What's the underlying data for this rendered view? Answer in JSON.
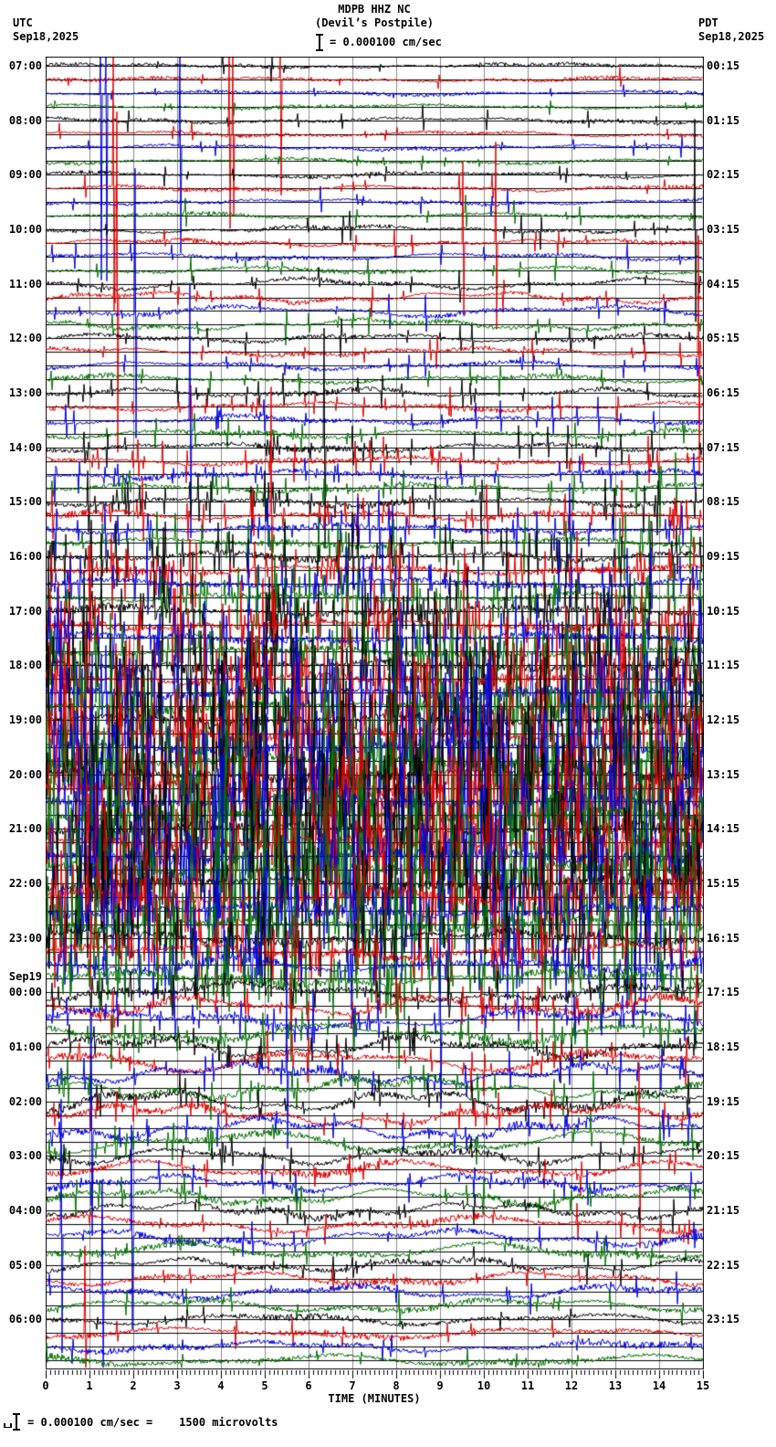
{
  "header": {
    "station_line": "MDPB HHZ NC",
    "location_line": "(Devil’s Postpile)",
    "left_timezone": "UTC",
    "left_date": "Sep18,2025",
    "right_timezone": "PDT",
    "right_date": "Sep18,2025",
    "scale_text": "= 0.000100 cm/sec"
  },
  "footer": {
    "scale_text": "= 0.000100 cm/sec =    1500 microvolts"
  },
  "xaxis": {
    "label": "TIME (MINUTES)",
    "tick_labels": [
      "0",
      "1",
      "2",
      "3",
      "4",
      "5",
      "6",
      "7",
      "8",
      "9",
      "10",
      "11",
      "12",
      "13",
      "14",
      "15"
    ]
  },
  "chart_data": {
    "type": "seismogram-helicorder",
    "title": "MDPB HHZ NC (Devil’s Postpile)",
    "minutes_per_line": 15,
    "lines_per_hour": 4,
    "row_count": 96,
    "x_range_minutes": [
      0,
      15
    ],
    "x_major_tick_minutes": 1,
    "x_minor_tick_minutes": 0.1,
    "amplitude_scale_cm_per_sec": "0.000100",
    "amplitude_scale_microvolts": "1500",
    "trace_color_cycle": [
      "black",
      "red",
      "blue",
      "green"
    ],
    "colors": {
      "black": "#000000",
      "red": "#dd0000",
      "blue": "#0000dd",
      "green": "#007000",
      "grid": "#8c8c8c",
      "border": "#000000",
      "background": "#ffffff"
    },
    "hours": [
      {
        "utc": "07:00",
        "pdt": "00:15",
        "noise": 1.6,
        "wander": 1.5,
        "spikes": 6,
        "spike_amp": 18
      },
      {
        "utc": "08:00",
        "pdt": "01:15",
        "noise": 1.6,
        "wander": 2.0,
        "spikes": 8,
        "spike_amp": 20
      },
      {
        "utc": "09:00",
        "pdt": "02:15",
        "noise": 1.7,
        "wander": 2.0,
        "spikes": 8,
        "spike_amp": 22
      },
      {
        "utc": "10:00",
        "pdt": "03:15",
        "noise": 1.8,
        "wander": 2.5,
        "spikes": 10,
        "spike_amp": 24
      },
      {
        "utc": "11:00",
        "pdt": "04:15",
        "noise": 2.0,
        "wander": 4.0,
        "spikes": 12,
        "spike_amp": 26
      },
      {
        "utc": "12:00",
        "pdt": "05:15",
        "noise": 2.0,
        "wander": 3.0,
        "spikes": 14,
        "spike_amp": 28
      },
      {
        "utc": "13:00",
        "pdt": "06:15",
        "noise": 2.2,
        "wander": 3.0,
        "spikes": 18,
        "spike_amp": 30
      },
      {
        "utc": "14:00",
        "pdt": "07:15",
        "noise": 2.4,
        "wander": 3.0,
        "spikes": 26,
        "spike_amp": 36
      },
      {
        "utc": "15:00",
        "pdt": "08:15",
        "noise": 2.6,
        "wander": 3.0,
        "spikes": 38,
        "spike_amp": 44
      },
      {
        "utc": "16:00",
        "pdt": "09:15",
        "noise": 2.8,
        "wander": 3.0,
        "spikes": 55,
        "spike_amp": 52
      },
      {
        "utc": "17:00",
        "pdt": "10:15",
        "noise": 3.2,
        "wander": 3.0,
        "spikes": 80,
        "spike_amp": 62
      },
      {
        "utc": "18:00",
        "pdt": "11:15",
        "noise": 4.0,
        "wander": 3.0,
        "spikes": 120,
        "spike_amp": 78
      },
      {
        "utc": "19:00",
        "pdt": "12:15",
        "noise": 4.5,
        "wander": 3.0,
        "spikes": 150,
        "spike_amp": 88
      },
      {
        "utc": "20:00",
        "pdt": "13:15",
        "noise": 4.5,
        "wander": 3.0,
        "spikes": 165,
        "spike_amp": 92
      },
      {
        "utc": "21:00",
        "pdt": "14:15",
        "noise": 4.5,
        "wander": 3.0,
        "spikes": 155,
        "spike_amp": 88
      },
      {
        "utc": "22:00",
        "pdt": "15:15",
        "noise": 4.0,
        "wander": 4.0,
        "spikes": 130,
        "spike_amp": 80
      },
      {
        "utc": "23:00",
        "pdt": "16:15",
        "noise": 3.5,
        "wander": 5.0,
        "spikes": 80,
        "spike_amp": 60
      },
      {
        "utc": "00:00",
        "pdt": "17:15",
        "date_label": "Sep19",
        "noise": 3.0,
        "wander": 7.0,
        "spikes": 40,
        "spike_amp": 40
      },
      {
        "utc": "01:00",
        "pdt": "18:15",
        "noise": 3.0,
        "wander": 8.0,
        "spikes": 28,
        "spike_amp": 34
      },
      {
        "utc": "02:00",
        "pdt": "19:15",
        "noise": 3.0,
        "wander": 8.0,
        "spikes": 24,
        "spike_amp": 30
      },
      {
        "utc": "03:00",
        "pdt": "20:15",
        "noise": 2.8,
        "wander": 6.0,
        "spikes": 20,
        "spike_amp": 28
      },
      {
        "utc": "04:00",
        "pdt": "21:15",
        "noise": 2.8,
        "wander": 6.0,
        "spikes": 16,
        "spike_amp": 26
      },
      {
        "utc": "05:00",
        "pdt": "22:15",
        "noise": 2.6,
        "wander": 5.0,
        "spikes": 12,
        "spike_amp": 24
      },
      {
        "utc": "06:00",
        "pdt": "23:15",
        "noise": 2.6,
        "wander": 4.0,
        "spikes": 10,
        "spike_amp": 22
      }
    ],
    "major_events": [
      {
        "row": 1,
        "minute": 5.35,
        "amp": 150
      },
      {
        "row": 2,
        "minute": 1.25,
        "amp": 240
      },
      {
        "row": 2,
        "minute": 1.37,
        "amp": 240
      },
      {
        "row": 5,
        "minute": 4.18,
        "amp": 120
      },
      {
        "row": 5,
        "minute": 4.28,
        "amp": 100
      },
      {
        "row": 6,
        "minute": 3.07,
        "amp": 140
      },
      {
        "row": 9,
        "minute": 1.55,
        "amp": 160
      },
      {
        "row": 12,
        "minute": 14.82,
        "amp": 120
      },
      {
        "row": 13,
        "minute": 9.52,
        "amp": 90
      },
      {
        "row": 13,
        "minute": 10.28,
        "amp": 110
      },
      {
        "row": 17,
        "minute": 1.62,
        "amp": 200
      },
      {
        "row": 18,
        "minute": 2.05,
        "amp": 160
      },
      {
        "row": 21,
        "minute": 14.9,
        "amp": 130
      },
      {
        "row": 26,
        "minute": 3.3,
        "amp": 150
      },
      {
        "row": 28,
        "minute": 6.35,
        "amp": 130
      },
      {
        "row": 33,
        "minute": 5.15,
        "amp": 140
      },
      {
        "row": 70,
        "minute": 9.0,
        "amp": 110
      },
      {
        "row": 74,
        "minute": 5.5,
        "amp": 100
      },
      {
        "row": 78,
        "minute": 1.05,
        "amp": 130
      },
      {
        "row": 81,
        "minute": 13.55,
        "amp": 110
      },
      {
        "row": 86,
        "minute": 0.35,
        "amp": 150
      },
      {
        "row": 86,
        "minute": 1.95,
        "amp": 120
      },
      {
        "row": 90,
        "minute": 1.3,
        "amp": 120
      },
      {
        "row": 93,
        "minute": 0.9,
        "amp": 100
      }
    ]
  }
}
